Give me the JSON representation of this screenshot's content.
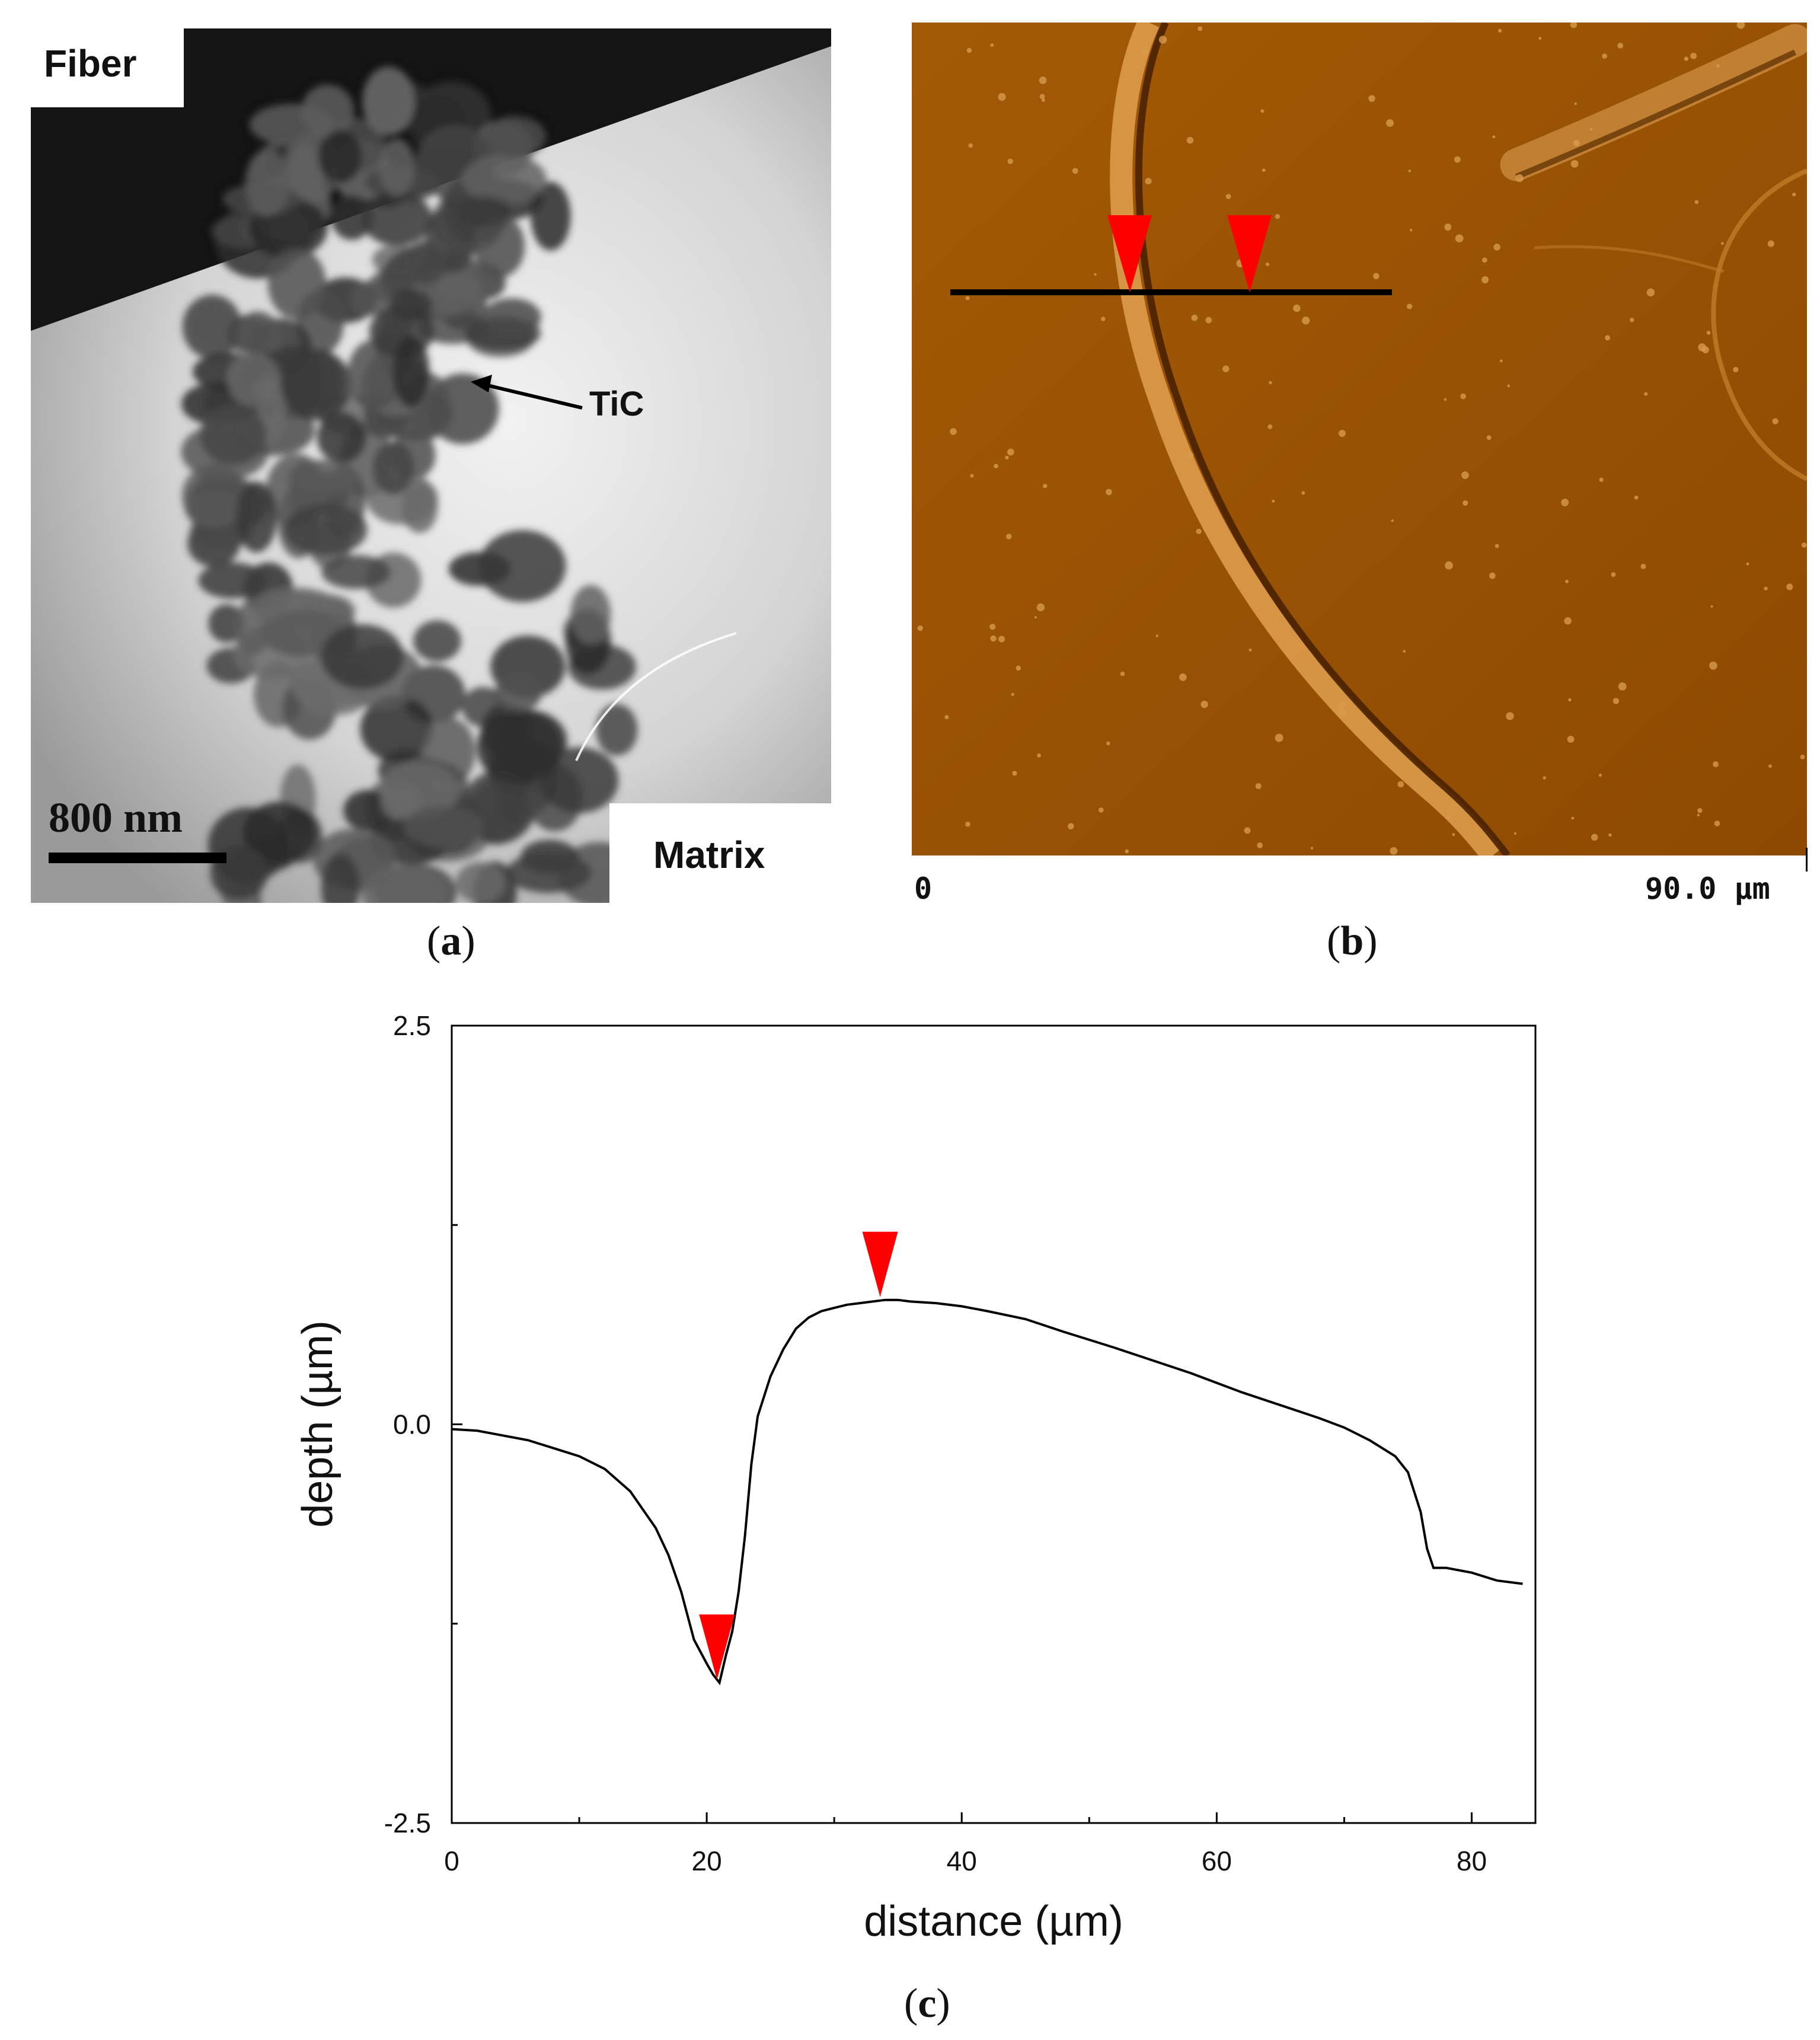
{
  "panel_a": {
    "label_fiber": "Fiber",
    "label_tic": "TiC",
    "label_matrix": "Matrix",
    "scale_bar": "800 nm",
    "caption_letter": "a"
  },
  "panel_b": {
    "axis_start": "0",
    "axis_end": "90.0 µm",
    "caption_letter": "b",
    "colors": {
      "surface": "#9a5203",
      "marker": "#ff0000",
      "line": "#000000"
    }
  },
  "panel_c": {
    "caption_letter": "c"
  },
  "chart_data": {
    "type": "line",
    "title": "",
    "xlabel": "distance  (µm)",
    "ylabel": "depth  (µm)",
    "xlim": [
      0,
      85
    ],
    "ylim": [
      -2.5,
      2.5
    ],
    "x_ticks": [
      0,
      20,
      40,
      60,
      80
    ],
    "y_ticks": [
      -2.5,
      0.0,
      2.5
    ],
    "y_tick_labels": [
      "-2.5",
      "0.0",
      "2.5"
    ],
    "grid": false,
    "line_color": "#000000",
    "marker_color": "#ff0000",
    "series": [
      {
        "x": [
          0,
          2,
          4,
          6,
          8,
          10,
          12,
          14,
          16,
          17,
          18,
          19,
          20,
          20.5,
          21,
          21.5,
          22,
          22.5,
          23,
          23.5,
          24,
          25,
          26,
          27,
          28,
          29,
          30,
          31,
          32,
          33,
          34,
          35,
          36,
          38,
          40,
          42,
          45,
          48,
          50,
          52,
          55,
          58,
          60,
          62,
          65,
          68,
          70,
          72,
          74,
          75,
          76,
          76.5,
          77,
          78,
          80,
          82,
          84
        ],
        "y": [
          -0.03,
          -0.04,
          -0.07,
          -0.1,
          -0.15,
          -0.2,
          -0.28,
          -0.42,
          -0.65,
          -0.82,
          -1.05,
          -1.35,
          -1.5,
          -1.57,
          -1.62,
          -1.45,
          -1.3,
          -1.05,
          -0.7,
          -0.25,
          0.05,
          0.3,
          0.47,
          0.6,
          0.67,
          0.71,
          0.73,
          0.75,
          0.76,
          0.77,
          0.78,
          0.78,
          0.77,
          0.76,
          0.74,
          0.71,
          0.66,
          0.58,
          0.53,
          0.48,
          0.4,
          0.32,
          0.26,
          0.2,
          0.12,
          0.04,
          -0.02,
          -0.1,
          -0.2,
          -0.3,
          -0.55,
          -0.78,
          -0.9,
          -0.9,
          -0.93,
          -0.98,
          -1.0
        ]
      }
    ],
    "markers": [
      {
        "x": 20.8,
        "y": -1.62
      },
      {
        "x": 33.6,
        "y": 0.78
      }
    ]
  }
}
